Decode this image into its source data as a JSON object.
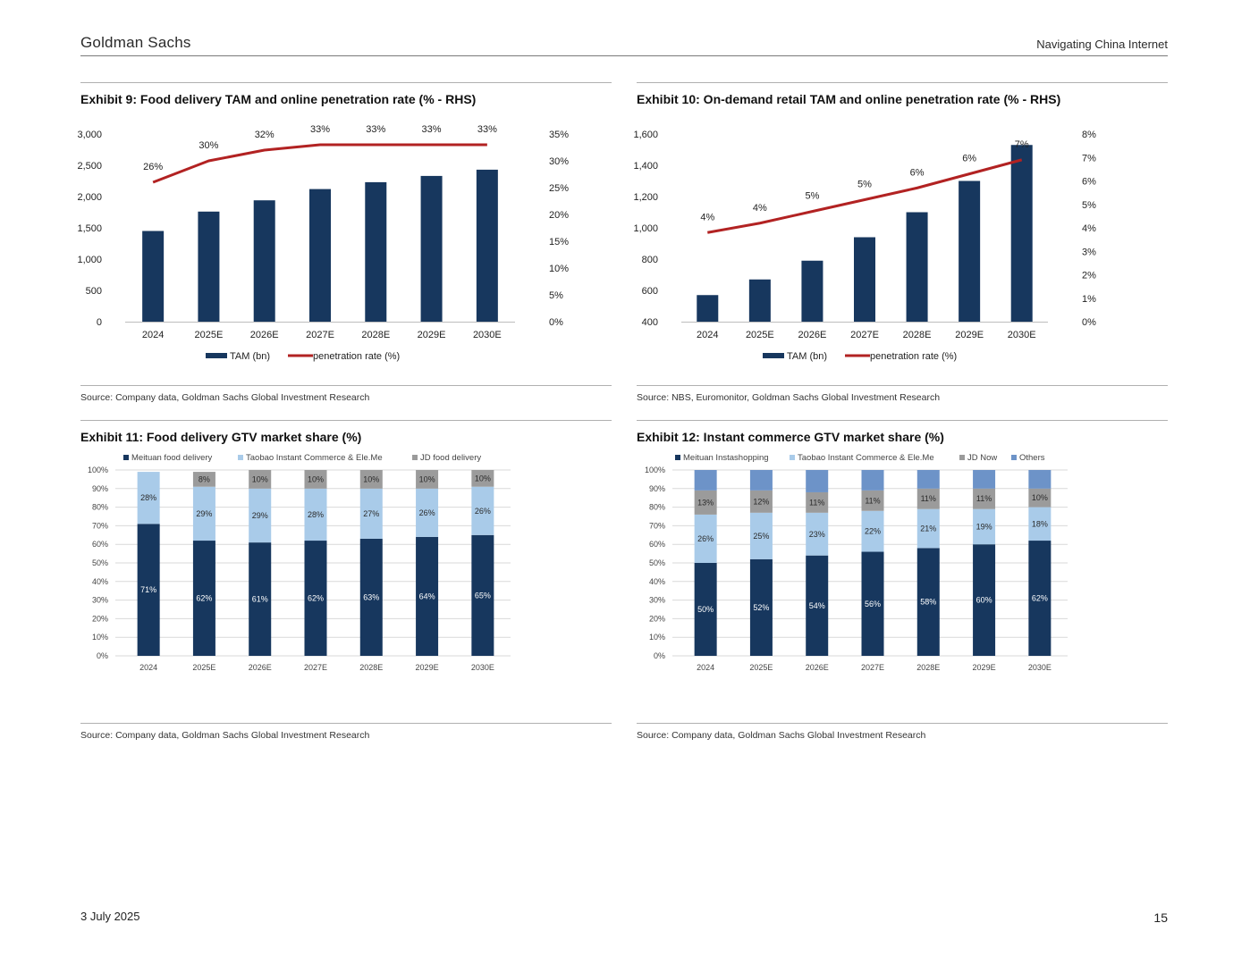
{
  "header": {
    "brand": "Goldman Sachs",
    "report": "Navigating China Internet"
  },
  "footer": {
    "date": "3 July 2025",
    "page": "15"
  },
  "colors": {
    "navy": "#17375e",
    "light_blue": "#a9cbe9",
    "grey": "#9b9b9b",
    "mid_blue": "#6d93c8",
    "red": "#b22222"
  },
  "panels": {
    "ex9": {
      "title": "Exhibit 9: Food delivery TAM and online penetration rate (% - RHS)",
      "source": "Source: Company data, Goldman Sachs Global Investment Research"
    },
    "ex10": {
      "title": "Exhibit 10: On-demand retail TAM and online penetration rate (% - RHS)",
      "source": "Source: NBS, Euromonitor, Goldman Sachs Global Investment Research"
    },
    "ex11": {
      "title": "Exhibit 11: Food delivery GTV market share (%)",
      "source": "Source: Company data, Goldman Sachs Global Investment Research"
    },
    "ex12": {
      "title": "Exhibit 12: Instant commerce GTV market share (%)",
      "source": "Source: Company data, Goldman Sachs Global Investment Research"
    }
  },
  "chart_data": [
    {
      "id": "ex9",
      "type": "bar+line",
      "categories": [
        "2024",
        "2025E",
        "2026E",
        "2027E",
        "2028E",
        "2029E",
        "2030E"
      ],
      "bars": {
        "name": "TAM (bn)",
        "values": [
          1450,
          1760,
          1940,
          2120,
          2230,
          2330,
          2430
        ]
      },
      "line": {
        "name": "penetration rate (%)",
        "values": [
          26,
          30,
          32,
          33,
          33,
          33,
          33
        ],
        "labels": [
          "26%",
          "30%",
          "32%",
          "33%",
          "33%",
          "33%",
          "33%"
        ]
      },
      "ylim": [
        0,
        3000
      ],
      "yticks": [
        "0",
        "500",
        "1,000",
        "1,500",
        "2,000",
        "2,500",
        "3,000"
      ],
      "y2lim": [
        0,
        35
      ],
      "y2ticks": [
        "0%",
        "5%",
        "10%",
        "15%",
        "20%",
        "25%",
        "30%",
        "35%"
      ]
    },
    {
      "id": "ex10",
      "type": "bar+line",
      "categories": [
        "2024",
        "2025E",
        "2026E",
        "2027E",
        "2028E",
        "2029E",
        "2030E"
      ],
      "bars": {
        "name": "TAM (bn)",
        "values": [
          570,
          670,
          790,
          940,
          1100,
          1300,
          1530
        ]
      },
      "line": {
        "name": "penetration rate (%)",
        "values": [
          3.8,
          4.2,
          4.7,
          5.2,
          5.7,
          6.3,
          6.9
        ],
        "labels": [
          "4%",
          "4%",
          "5%",
          "5%",
          "6%",
          "6%",
          "7%"
        ]
      },
      "ylim": [
        400,
        1600
      ],
      "yticks": [
        "400",
        "600",
        "800",
        "1,000",
        "1,200",
        "1,400",
        "1,600"
      ],
      "y2lim": [
        0,
        8
      ],
      "y2ticks": [
        "0%",
        "1%",
        "2%",
        "3%",
        "4%",
        "5%",
        "6%",
        "7%",
        "8%"
      ]
    },
    {
      "id": "ex11",
      "type": "stacked_bar",
      "categories": [
        "2024",
        "2025E",
        "2026E",
        "2027E",
        "2028E",
        "2029E",
        "2030E"
      ],
      "series": [
        {
          "name": "Meituan food delivery",
          "values": [
            71,
            62,
            61,
            62,
            63,
            64,
            65
          ],
          "labels": [
            "71%",
            "62%",
            "61%",
            "62%",
            "63%",
            "64%",
            "65%"
          ]
        },
        {
          "name": "Taobao Instant Commerce & Ele.Me",
          "values": [
            28,
            29,
            29,
            28,
            27,
            26,
            26
          ],
          "labels": [
            "28%",
            "29%",
            "29%",
            "28%",
            "27%",
            "26%",
            "26%"
          ]
        },
        {
          "name": "JD food delivery",
          "values": [
            0,
            8,
            10,
            10,
            10,
            10,
            10
          ],
          "labels": [
            "",
            "8%",
            "10%",
            "10%",
            "10%",
            "10%",
            "10%"
          ]
        }
      ],
      "ylim": [
        0,
        100
      ],
      "yticks": [
        "0%",
        "10%",
        "20%",
        "30%",
        "40%",
        "50%",
        "60%",
        "70%",
        "80%",
        "90%",
        "100%"
      ]
    },
    {
      "id": "ex12",
      "type": "stacked_bar",
      "categories": [
        "2024",
        "2025E",
        "2026E",
        "2027E",
        "2028E",
        "2029E",
        "2030E"
      ],
      "series": [
        {
          "name": "Meituan Instashopping",
          "values": [
            50,
            52,
            54,
            56,
            58,
            60,
            62
          ],
          "labels": [
            "50%",
            "52%",
            "54%",
            "56%",
            "58%",
            "60%",
            "62%"
          ]
        },
        {
          "name": "Taobao Instant Commerce & Ele.Me",
          "values": [
            26,
            25,
            23,
            22,
            21,
            19,
            18
          ],
          "labels": [
            "26%",
            "25%",
            "23%",
            "22%",
            "21%",
            "19%",
            "18%"
          ]
        },
        {
          "name": "JD Now",
          "values": [
            13,
            12,
            11,
            11,
            11,
            11,
            10
          ],
          "labels": [
            "13%",
            "12%",
            "11%",
            "11%",
            "11%",
            "11%",
            "10%"
          ]
        },
        {
          "name": "Others",
          "values": [
            11,
            11,
            12,
            11,
            10,
            10,
            10
          ],
          "labels": [
            "",
            "",
            "",
            "",
            "",
            "",
            ""
          ]
        }
      ],
      "ylim": [
        0,
        100
      ],
      "yticks": [
        "0%",
        "10%",
        "20%",
        "30%",
        "40%",
        "50%",
        "60%",
        "70%",
        "80%",
        "90%",
        "100%"
      ]
    }
  ]
}
